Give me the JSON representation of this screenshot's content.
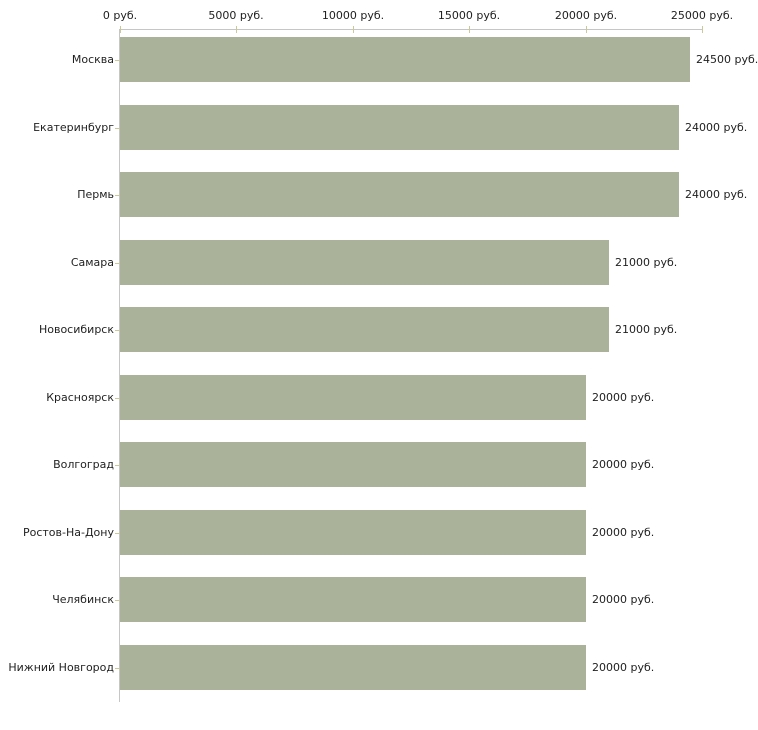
{
  "chart_data": {
    "type": "bar",
    "orientation": "horizontal",
    "title": "",
    "xlabel": "",
    "ylabel": "",
    "categories": [
      "Москва",
      "Екатеринбург",
      "Пермь",
      "Самара",
      "Новосибирск",
      "Красноярск",
      "Волгоград",
      "Ростов-На-Дону",
      "Челябинск",
      "Нижний Новгород"
    ],
    "values": [
      24500,
      24000,
      24000,
      21000,
      21000,
      20000,
      20000,
      20000,
      20000,
      20000
    ],
    "value_labels": [
      "24500 руб.",
      "24000 руб.",
      "24000 руб.",
      "21000 руб.",
      "21000 руб.",
      "20000 руб.",
      "20000 руб.",
      "20000 руб.",
      "20000 руб.",
      "20000 руб."
    ],
    "x_axis": {
      "position": "top",
      "min": 0,
      "max": 25000,
      "tick_values": [
        0,
        5000,
        10000,
        15000,
        20000,
        25000
      ],
      "tick_labels": [
        "0 руб.",
        "5000 руб.",
        "10000 руб.",
        "15000 руб.",
        "20000 руб.",
        "25000 руб."
      ]
    },
    "grid": false,
    "legend": false,
    "colors": {
      "bar": "#aab39a",
      "axis_line": "#c6c6c6",
      "tick_mark": "#c9c99b",
      "text": "#1f1f1f",
      "background": "#ffffff"
    }
  }
}
